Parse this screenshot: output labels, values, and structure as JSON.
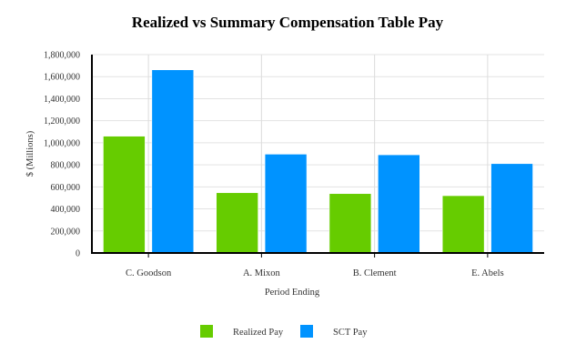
{
  "chart_data": {
    "type": "bar",
    "title": "Realized vs Summary Compensation Table Pay",
    "xlabel": "Period Ending",
    "ylabel": "$ (Millions)",
    "categories": [
      "C. Goodson",
      "A. Mixon",
      "B. Clement",
      "E. Abels"
    ],
    "series": [
      {
        "name": "Realized Pay",
        "color": "#66cc00",
        "values": [
          1060000,
          547000,
          539000,
          520000
        ]
      },
      {
        "name": "SCT Pay",
        "color": "#0093ff",
        "values": [
          1662000,
          897000,
          891000,
          811000
        ]
      }
    ],
    "ylim": [
      0,
      1800000
    ],
    "yticks": [
      "0",
      "200,000",
      "400,000",
      "600,000",
      "800,000",
      "1,000,000",
      "1,200,000",
      "1,400,000",
      "1,600,000",
      "1,800,000"
    ],
    "grid": true,
    "legend": "bottom"
  }
}
